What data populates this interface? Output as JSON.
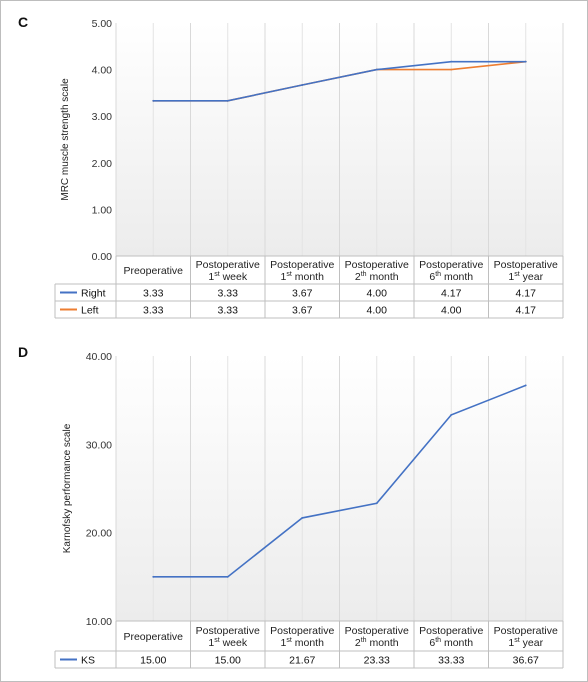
{
  "panels": {
    "c": "C",
    "d": "D"
  },
  "chart_data": [
    {
      "type": "line",
      "panel": "C",
      "ylabel": "MRC muscle strength scale",
      "ylim": [
        0,
        5
      ],
      "yticks": [
        "0.00",
        "1.00",
        "2.00",
        "3.00",
        "4.00",
        "5.00"
      ],
      "categories": [
        {
          "line1": "Preoperative",
          "line2": "",
          "sup": "",
          "suffix": ""
        },
        {
          "line1": "Postoperative",
          "line2": "1",
          "sup": "st",
          "suffix": " week"
        },
        {
          "line1": "Postoperative",
          "line2": "1",
          "sup": "st",
          "suffix": " month"
        },
        {
          "line1": "Postoperative",
          "line2": "2",
          "sup": "th",
          "suffix": " month"
        },
        {
          "line1": "Postoperative",
          "line2": "6",
          "sup": "th",
          "suffix": " month"
        },
        {
          "line1": "Postoperative",
          "line2": "1",
          "sup": "st",
          "suffix": " year"
        }
      ],
      "series": [
        {
          "name": "Right",
          "color": "#4472C4",
          "values": [
            3.33,
            3.33,
            3.67,
            4.0,
            4.17,
            4.17
          ],
          "labels": [
            "3.33",
            "3.33",
            "3.67",
            "4.00",
            "4.17",
            "4.17"
          ]
        },
        {
          "name": "Left",
          "color": "#ED7D31",
          "values": [
            3.33,
            3.33,
            3.67,
            4.0,
            4.0,
            4.17
          ],
          "labels": [
            "3.33",
            "3.33",
            "3.67",
            "4.00",
            "4.00",
            "4.17"
          ]
        }
      ],
      "grid": true,
      "legend": "data-table"
    },
    {
      "type": "line",
      "panel": "D",
      "ylabel": "Karnofsky performance scale",
      "ylim": [
        10,
        40
      ],
      "yticks": [
        "10.00",
        "20.00",
        "30.00",
        "40.00"
      ],
      "categories": [
        {
          "line1": "Preoperative",
          "line2": "",
          "sup": "",
          "suffix": ""
        },
        {
          "line1": "Postoperative",
          "line2": "1",
          "sup": "st",
          "suffix": " week"
        },
        {
          "line1": "Postoperative",
          "line2": "1",
          "sup": "st",
          "suffix": " month"
        },
        {
          "line1": "Postoperative",
          "line2": "2",
          "sup": "th",
          "suffix": " month"
        },
        {
          "line1": "Postoperative",
          "line2": "6",
          "sup": "th",
          "suffix": " month"
        },
        {
          "line1": "Postoperative",
          "line2": "1",
          "sup": "st",
          "suffix": " year"
        }
      ],
      "series": [
        {
          "name": "KS",
          "color": "#4472C4",
          "values": [
            15.0,
            15.0,
            21.67,
            23.33,
            33.33,
            36.67
          ],
          "labels": [
            "15.00",
            "15.00",
            "21.67",
            "23.33",
            "33.33",
            "36.67"
          ]
        }
      ],
      "grid": true,
      "legend": "data-table"
    }
  ]
}
